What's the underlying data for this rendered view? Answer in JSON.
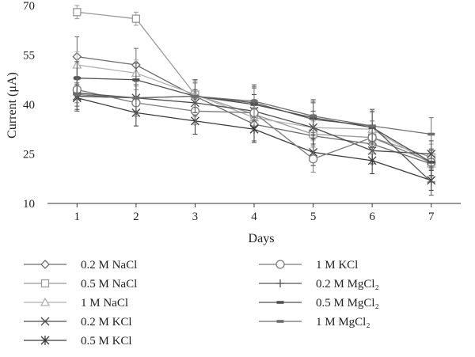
{
  "chart_data": {
    "type": "line",
    "xlabel": "Days",
    "ylabel": "Current (μA)",
    "x": [
      1,
      2,
      3,
      4,
      5,
      6,
      7
    ],
    "xlim": [
      0.5,
      7.5
    ],
    "ylim": [
      10,
      70
    ],
    "yticks": [
      10,
      25,
      40,
      55,
      70
    ],
    "grid": false,
    "legend": "bottom",
    "series": [
      {
        "name": "0.2 M NaCl",
        "values": [
          54.5,
          52,
          42.5,
          34,
          30.5,
          28,
          22
        ],
        "err": [
          6,
          5,
          4,
          5,
          5,
          5,
          4
        ],
        "marker": "diamond",
        "color": "#6b6b6b"
      },
      {
        "name": "0.5 M NaCl",
        "values": [
          68,
          66,
          43,
          37,
          31,
          30,
          24
        ],
        "err": [
          2,
          2,
          4,
          4,
          4,
          5,
          4
        ],
        "marker": "square",
        "color": "#9a9a9a"
      },
      {
        "name": "1 M NaCl",
        "values": [
          52,
          49.5,
          43,
          36,
          33,
          32.5,
          22
        ],
        "err": [
          4,
          4,
          4,
          4,
          4,
          5,
          4
        ],
        "marker": "triangle",
        "color": "#b0b0b0"
      },
      {
        "name": "0.2 M KCl",
        "values": [
          42.5,
          42,
          40.5,
          38,
          33,
          26,
          25
        ],
        "err": [
          4,
          4,
          4,
          5,
          5,
          4,
          4
        ],
        "marker": "x",
        "color": "#4a4a4a"
      },
      {
        "name": "0.5 M KCl",
        "values": [
          42,
          37.5,
          35,
          32.5,
          25.5,
          23,
          17
        ],
        "err": [
          4,
          4,
          4,
          4,
          4,
          4,
          3
        ],
        "marker": "asterisk",
        "color": "#3a3a3a"
      },
      {
        "name": "1 M KCl",
        "values": [
          44.5,
          40.5,
          38,
          37.5,
          23.5,
          30,
          22.5
        ],
        "err": [
          4,
          4,
          4,
          4,
          4,
          5,
          4
        ],
        "marker": "circle",
        "color": "#7a7a7a"
      },
      {
        "name": "0.2 M MgCl₂",
        "values": [
          43.5,
          42,
          42.5,
          40.5,
          35.5,
          33.5,
          16.5
        ],
        "err": [
          4,
          4,
          5,
          5,
          5,
          5,
          4
        ],
        "marker": "plus",
        "color": "#555555"
      },
      {
        "name": "0.5 M MgCl₂",
        "values": [
          48,
          47.5,
          42.5,
          40,
          36,
          33,
          22.5
        ],
        "err": [
          5,
          5,
          5,
          5,
          5,
          5,
          4
        ],
        "marker": "dash",
        "color": "#4f4f4f"
      },
      {
        "name": "1 M MgCl₂",
        "values": [
          43,
          42,
          42.5,
          41,
          36.5,
          33.5,
          31
        ],
        "err": [
          5,
          5,
          5,
          5,
          5,
          5,
          5
        ],
        "marker": "dash",
        "color": "#6e6e6e"
      }
    ]
  }
}
